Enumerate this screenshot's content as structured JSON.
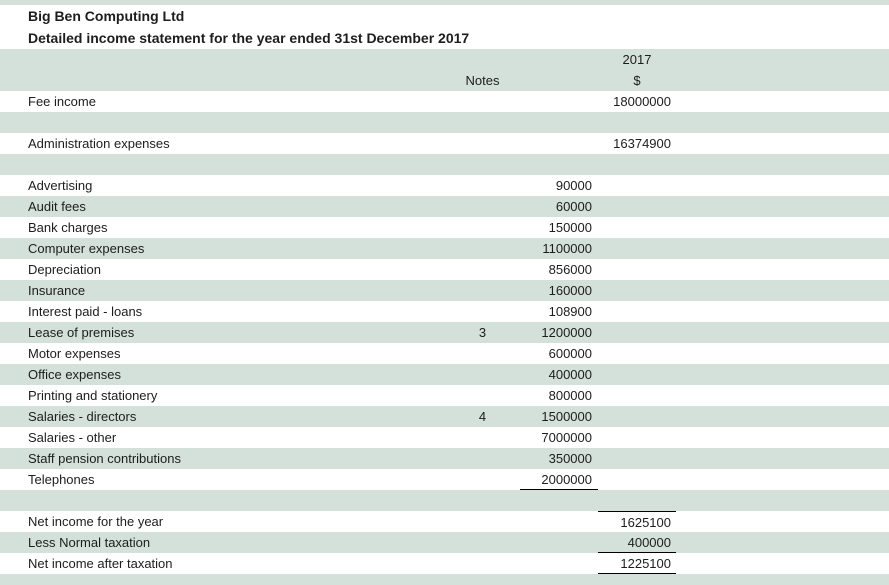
{
  "document": {
    "company": "Big Ben Computing Ltd",
    "statement_title": "Detailed income statement for the year ended 31st December 2017"
  },
  "table": {
    "headers": {
      "notes": "Notes",
      "year": "2017",
      "currency": "$"
    },
    "rows": [
      {
        "label": "Fee income",
        "note": "",
        "detail": "",
        "total": "18000000",
        "rules": []
      },
      {
        "label": "",
        "note": "",
        "detail": "",
        "total": "",
        "rules": []
      },
      {
        "label": "Administration expenses",
        "note": "",
        "detail": "",
        "total": "16374900",
        "rules": []
      },
      {
        "label": "",
        "note": "",
        "detail": "",
        "total": "",
        "rules": []
      },
      {
        "label": "Advertising",
        "note": "",
        "detail": "90000",
        "total": "",
        "rules": []
      },
      {
        "label": "Audit fees",
        "note": "",
        "detail": "60000",
        "total": "",
        "rules": []
      },
      {
        "label": "Bank charges",
        "note": "",
        "detail": "150000",
        "total": "",
        "rules": []
      },
      {
        "label": "Computer expenses",
        "note": "",
        "detail": "1100000",
        "total": "",
        "rules": []
      },
      {
        "label": "Depreciation",
        "note": "",
        "detail": "856000",
        "total": "",
        "rules": []
      },
      {
        "label": "Insurance",
        "note": "",
        "detail": "160000",
        "total": "",
        "rules": []
      },
      {
        "label": "Interest paid - loans",
        "note": "",
        "detail": "108900",
        "total": "",
        "rules": []
      },
      {
        "label": "Lease of premises",
        "note": "3",
        "detail": "1200000",
        "total": "",
        "rules": []
      },
      {
        "label": "Motor expenses",
        "note": "",
        "detail": "600000",
        "total": "",
        "rules": []
      },
      {
        "label": "Office expenses",
        "note": "",
        "detail": "400000",
        "total": "",
        "rules": []
      },
      {
        "label": "Printing and stationery",
        "note": "",
        "detail": "800000",
        "total": "",
        "rules": []
      },
      {
        "label": "Salaries - directors",
        "note": "4",
        "detail": "1500000",
        "total": "",
        "rules": []
      },
      {
        "label": "Salaries - other",
        "note": "",
        "detail": "7000000",
        "total": "",
        "rules": []
      },
      {
        "label": "Staff pension contributions",
        "note": "",
        "detail": "350000",
        "total": "",
        "rules": []
      },
      {
        "label": "Telephones",
        "note": "",
        "detail": "2000000",
        "total": "",
        "rules": [
          "detail-bottom"
        ]
      },
      {
        "label": "",
        "note": "",
        "detail": "",
        "total": "",
        "rules": []
      },
      {
        "label": "Net income for the year",
        "note": "",
        "detail": "",
        "total": "1625100",
        "rules": [
          "total-top"
        ]
      },
      {
        "label": "Less Normal taxation",
        "note": "",
        "detail": "",
        "total": "400000",
        "rules": [
          "total-bottom"
        ]
      },
      {
        "label": "Net income after taxation",
        "note": "",
        "detail": "",
        "total": "1225100",
        "rules": [
          "total-bottom"
        ]
      }
    ]
  },
  "colors": {
    "band_green": "#d3e1da",
    "text": "#1d1d1d",
    "rule_line": "#000000"
  }
}
